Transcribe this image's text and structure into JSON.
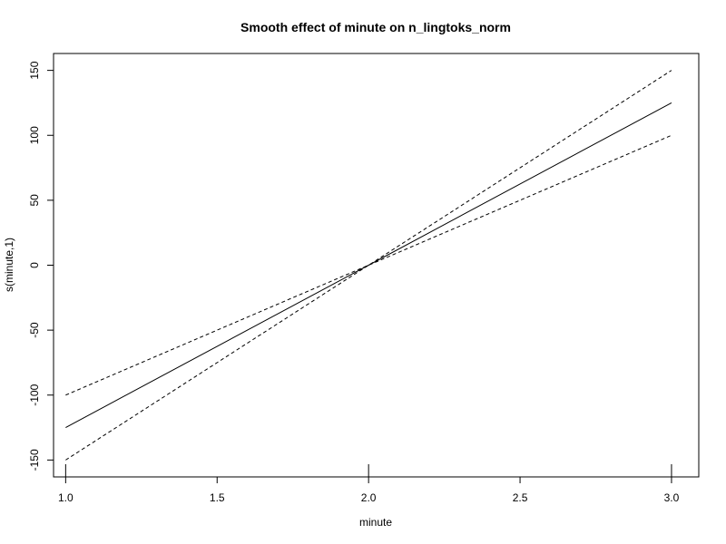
{
  "chart_data": {
    "type": "line",
    "title": "Smooth effect of minute on n_lingtoks_norm",
    "xlabel": "minute",
    "ylabel": "s(minute,1)",
    "xlim": [
      0.96,
      3.09
    ],
    "ylim": [
      -163,
      163
    ],
    "x_ticks": [
      1.0,
      1.5,
      2.0,
      2.5,
      3.0
    ],
    "x_tick_labels": [
      "1.0",
      "1.5",
      "2.0",
      "2.5",
      "3.0"
    ],
    "y_ticks": [
      -150,
      -100,
      -50,
      0,
      50,
      100,
      150
    ],
    "y_tick_labels": [
      "-150",
      "-100",
      "-50",
      "0",
      "50",
      "100",
      "150"
    ],
    "rug": [
      1.0,
      2.0,
      3.0
    ],
    "grid": false,
    "series": [
      {
        "style": "solid",
        "x": [
          1.0,
          2.0,
          3.0
        ],
        "y": [
          -125,
          0,
          125
        ]
      },
      {
        "style": "dashed",
        "x": [
          1.0,
          2.0,
          3.0
        ],
        "y": [
          -100,
          0,
          100
        ]
      },
      {
        "style": "dashed",
        "x": [
          1.0,
          2.0,
          3.0
        ],
        "y": [
          -150,
          0,
          150
        ]
      }
    ]
  }
}
